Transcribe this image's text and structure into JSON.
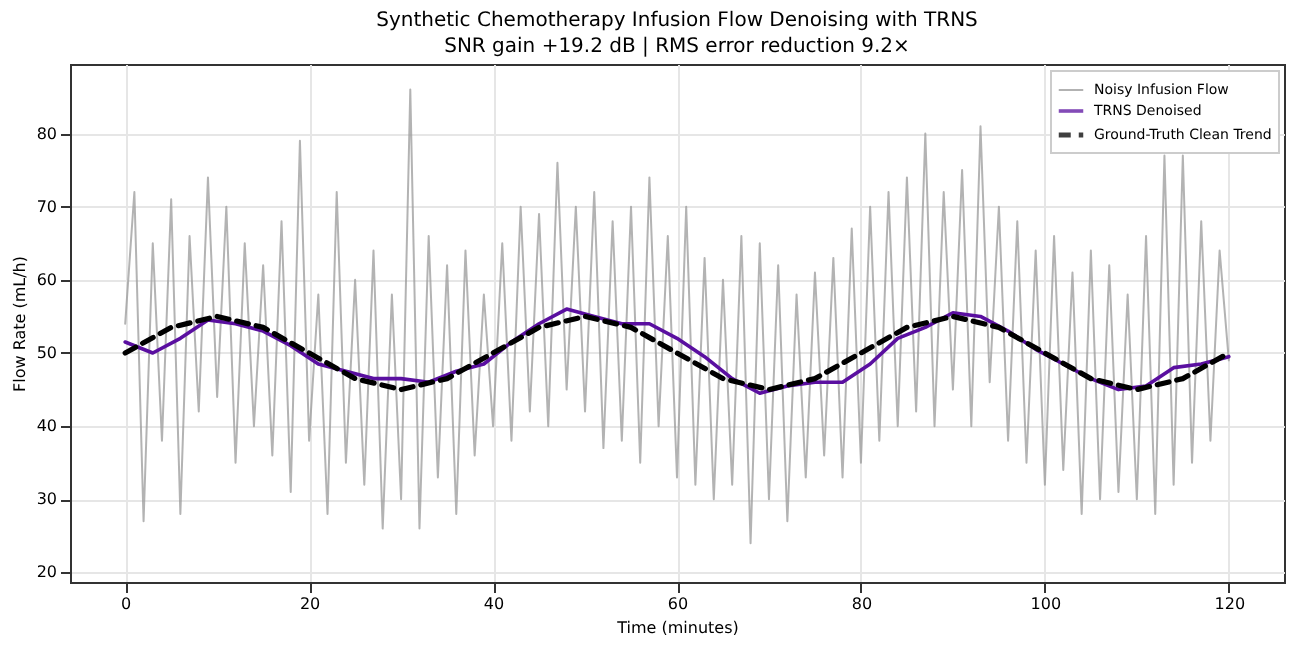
{
  "chart_data": {
    "type": "line",
    "title": "Synthetic Chemotherapy Infusion Flow Denoising with TRNS",
    "subtitle": "SNR gain +19.2 dB | RMS error reduction 9.2×",
    "xlabel": "Time (minutes)",
    "ylabel": "Flow Rate (mL/h)",
    "xlim": [
      -6,
      126
    ],
    "xticks": [
      0,
      20,
      40,
      60,
      80,
      100,
      120
    ],
    "ylim": [
      18.7,
      89.5
    ],
    "yticks": [
      20,
      30,
      40,
      50,
      60,
      70,
      80
    ],
    "grid": true,
    "legend": "top right",
    "marker": "none",
    "series": [
      {
        "name": "Noisy Infusion Flow",
        "color": "#999999",
        "line_style": "solid",
        "x": [
          0,
          1,
          2,
          3,
          4,
          5,
          6,
          7,
          8,
          9,
          10,
          11,
          12,
          13,
          14,
          15,
          16,
          17,
          18,
          19,
          20,
          21,
          22,
          23,
          24,
          25,
          26,
          27,
          28,
          29,
          30,
          31,
          32,
          33,
          34,
          35,
          36,
          37,
          38,
          39,
          40,
          41,
          42,
          43,
          44,
          45,
          46,
          47,
          48,
          49,
          50,
          51,
          52,
          53,
          54,
          55,
          56,
          57,
          58,
          59,
          60,
          61,
          62,
          63,
          64,
          65,
          66,
          67,
          68,
          69,
          70,
          71,
          72,
          73,
          74,
          75,
          76,
          77,
          78,
          79,
          80,
          81,
          82,
          83,
          84,
          85,
          86,
          87,
          88,
          89,
          90,
          91,
          92,
          93,
          94,
          95,
          96,
          97,
          98,
          99,
          100,
          101,
          102,
          103,
          104,
          105,
          106,
          107,
          108,
          109,
          110,
          111,
          112,
          113,
          114,
          115,
          116,
          117,
          118,
          119,
          120
        ],
        "values": [
          54,
          72,
          27,
          65,
          38,
          71,
          28,
          66,
          42,
          74,
          44,
          70,
          35,
          65,
          40,
          62,
          36,
          68,
          31,
          79,
          38,
          58,
          28,
          72,
          35,
          60,
          32,
          64,
          26,
          58,
          30,
          86,
          26,
          66,
          33,
          62,
          28,
          64,
          36,
          58,
          40,
          65,
          38,
          70,
          42,
          69,
          40,
          76,
          45,
          70,
          42,
          72,
          37,
          68,
          38,
          70,
          35,
          74,
          40,
          66,
          33,
          70,
          32,
          63,
          30,
          60,
          32,
          66,
          24,
          65,
          30,
          62,
          27,
          58,
          33,
          61,
          36,
          63,
          33,
          67,
          35,
          70,
          38,
          72,
          40,
          74,
          42,
          80,
          40,
          72,
          45,
          75,
          40,
          81,
          46,
          70,
          38,
          68,
          35,
          64,
          32,
          66,
          34,
          61,
          28,
          64,
          30,
          62,
          31,
          58,
          30,
          66,
          28,
          77,
          32,
          77,
          35,
          68,
          38,
          64,
          49
        ]
      },
      {
        "name": "TRNS Denoised",
        "color": "#5a0fa0",
        "line_style": "solid",
        "x": [
          0,
          3,
          6,
          9,
          12,
          15,
          18,
          21,
          24,
          27,
          30,
          33,
          36,
          39,
          42,
          45,
          48,
          51,
          54,
          57,
          60,
          63,
          66,
          69,
          72,
          75,
          78,
          81,
          84,
          87,
          90,
          93,
          96,
          99,
          102,
          105,
          108,
          111,
          114,
          117,
          120
        ],
        "values": [
          51.5,
          50,
          52,
          54.5,
          54,
          53,
          51,
          48.5,
          47.5,
          46.5,
          46.5,
          46,
          47.5,
          48.5,
          51.5,
          54,
          56,
          55,
          54,
          54,
          52,
          49.5,
          46.5,
          44.5,
          45.5,
          46,
          46,
          48.5,
          52,
          53.5,
          55.5,
          55,
          53,
          50.5,
          48.5,
          46.5,
          45,
          45.5,
          48,
          48.5,
          49.5
        ]
      },
      {
        "name": "Ground-Truth Clean Trend",
        "color": "#000000",
        "line_style": "dashed",
        "x": [
          0,
          5,
          10,
          15,
          20,
          25,
          30,
          35,
          40,
          45,
          50,
          55,
          60,
          65,
          70,
          75,
          80,
          85,
          90,
          95,
          100,
          105,
          110,
          115,
          120
        ],
        "values": [
          50,
          53.5,
          55,
          53.5,
          50,
          46.5,
          45,
          46.5,
          50,
          53.5,
          55,
          53.5,
          50,
          46.5,
          45,
          46.5,
          50,
          53.5,
          55,
          53.5,
          50,
          46.5,
          45,
          46.5,
          50
        ]
      }
    ]
  }
}
